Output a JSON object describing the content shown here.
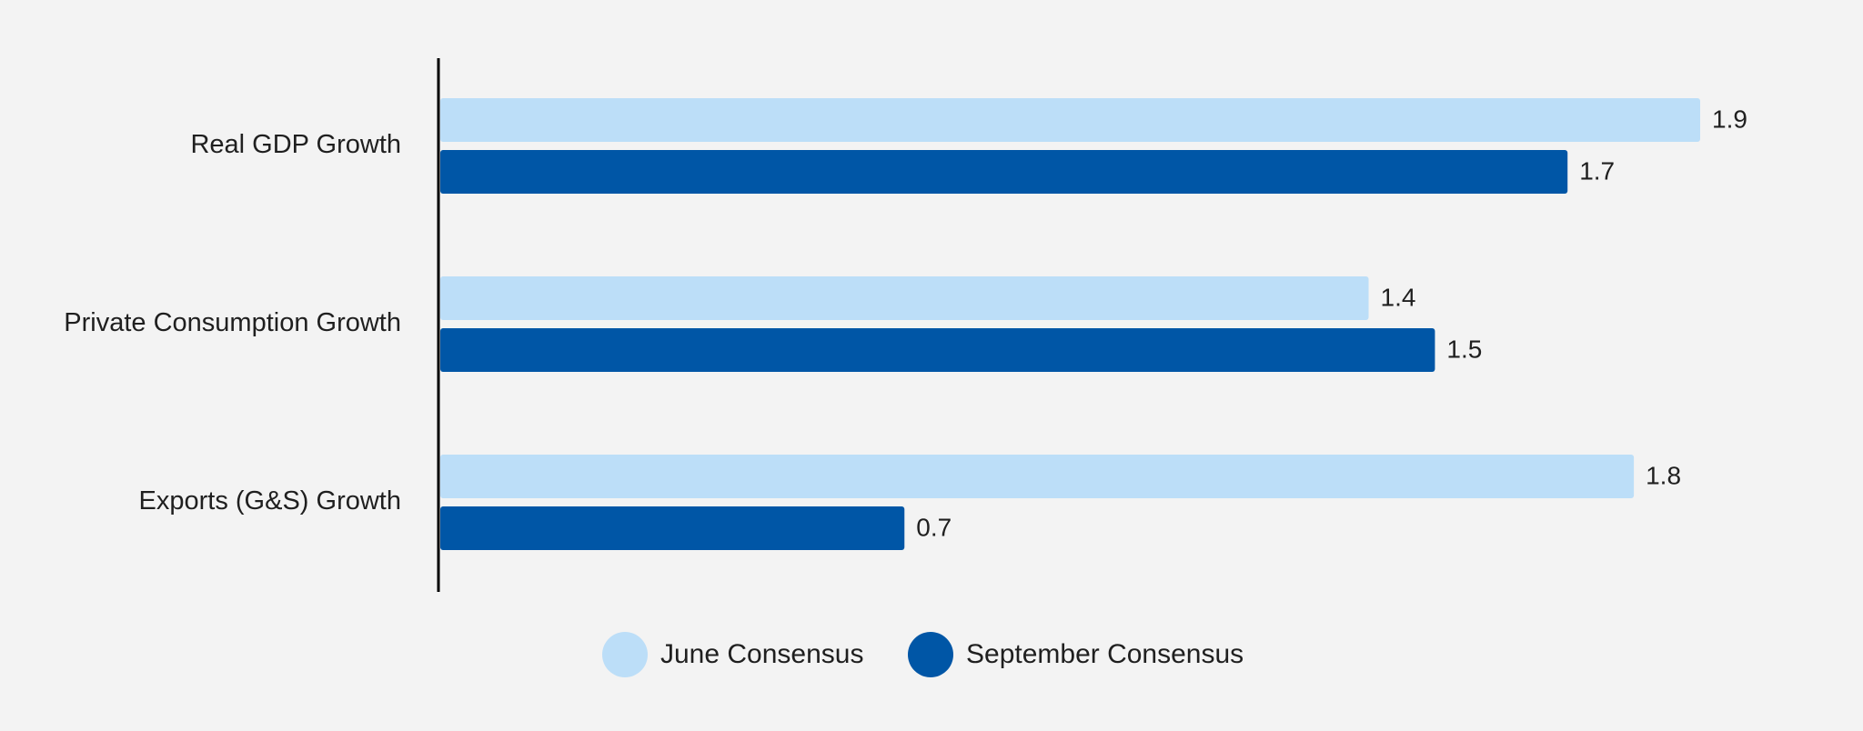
{
  "chart_data": {
    "type": "bar",
    "orientation": "horizontal",
    "categories": [
      "Real GDP Growth",
      "Private Consumption Growth",
      "Exports (G&S) Growth"
    ],
    "series": [
      {
        "name": "June Consensus",
        "values": [
          1.9,
          1.4,
          1.8
        ],
        "color": "#bcdef8"
      },
      {
        "name": "September Consensus",
        "values": [
          1.7,
          1.5,
          0.7
        ],
        "color": "#0056a6"
      }
    ],
    "xlim": [
      0,
      1.9
    ],
    "grid": false,
    "legend": "bottom-center",
    "value_labels": {
      "june": [
        "1.9",
        "1.4",
        "1.8"
      ],
      "september": [
        "1.7",
        "1.5",
        "0.7"
      ]
    }
  }
}
